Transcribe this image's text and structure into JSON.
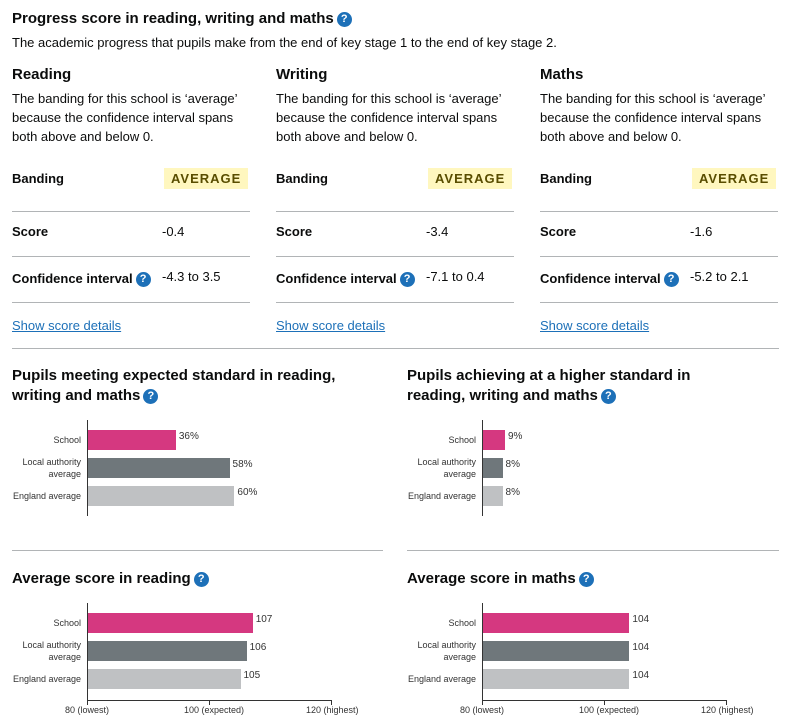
{
  "progress": {
    "title": "Progress score in reading, writing and maths",
    "intro": "The academic progress that pupils make from the end of key stage 1 to the end of key stage 2.",
    "subjects": [
      {
        "name": "Reading",
        "description": "The banding for this school is ‘average’ because the confidence interval spans both above and below 0.",
        "banding": "AVERAGE",
        "score": "-0.4",
        "ci": "-4.3 to 3.5",
        "link": "Show score details"
      },
      {
        "name": "Writing",
        "description": "The banding for this school is ‘average’ because the confidence interval spans both above and below 0.",
        "banding": "AVERAGE",
        "score": "-3.4",
        "ci": "-7.1 to 0.4",
        "link": "Show score details"
      },
      {
        "name": "Maths",
        "description": "The banding for this school is ‘average’ because the confidence interval spans both above and below 0.",
        "banding": "AVERAGE",
        "score": "-1.6",
        "ci": "-5.2 to 2.1",
        "link": "Show score details"
      }
    ],
    "labels": {
      "banding": "Banding",
      "score": "Score",
      "ci": "Confidence interval"
    },
    "help_icon": "?"
  },
  "colors": {
    "school": "#d53880",
    "la": "#6f777b",
    "england": "#bfc1c3",
    "link": "#1d70b8"
  },
  "chart_data": [
    {
      "type": "bar",
      "title": "Pupils meeting expected standard in reading, writing and maths",
      "categories": [
        "School",
        "Local authority average",
        "England average"
      ],
      "values": [
        36,
        58,
        60
      ],
      "labels": [
        "36%",
        "58%",
        "60%"
      ],
      "xlim": [
        0,
        100
      ]
    },
    {
      "type": "bar",
      "title": "Pupils achieving at a higher standard in reading, writing and maths",
      "categories": [
        "School",
        "Local authority average",
        "England average"
      ],
      "values": [
        9,
        8,
        8
      ],
      "labels": [
        "9%",
        "8%",
        "8%"
      ],
      "xlim": [
        0,
        100
      ]
    },
    {
      "type": "bar",
      "title": "Average score in reading",
      "categories": [
        "School",
        "Local authority average",
        "England average"
      ],
      "values": [
        107,
        106,
        105
      ],
      "labels": [
        "107",
        "106",
        "105"
      ],
      "xlim": [
        80,
        120
      ],
      "ticks": [
        "80 (lowest)",
        "100 (expected)",
        "120 (highest)"
      ]
    },
    {
      "type": "bar",
      "title": "Average score in maths",
      "categories": [
        "School",
        "Local authority average",
        "England average"
      ],
      "values": [
        104,
        104,
        104
      ],
      "labels": [
        "104",
        "104",
        "104"
      ],
      "xlim": [
        80,
        120
      ],
      "ticks": [
        "80 (lowest)",
        "100 (expected)",
        "120 (highest)"
      ]
    }
  ]
}
